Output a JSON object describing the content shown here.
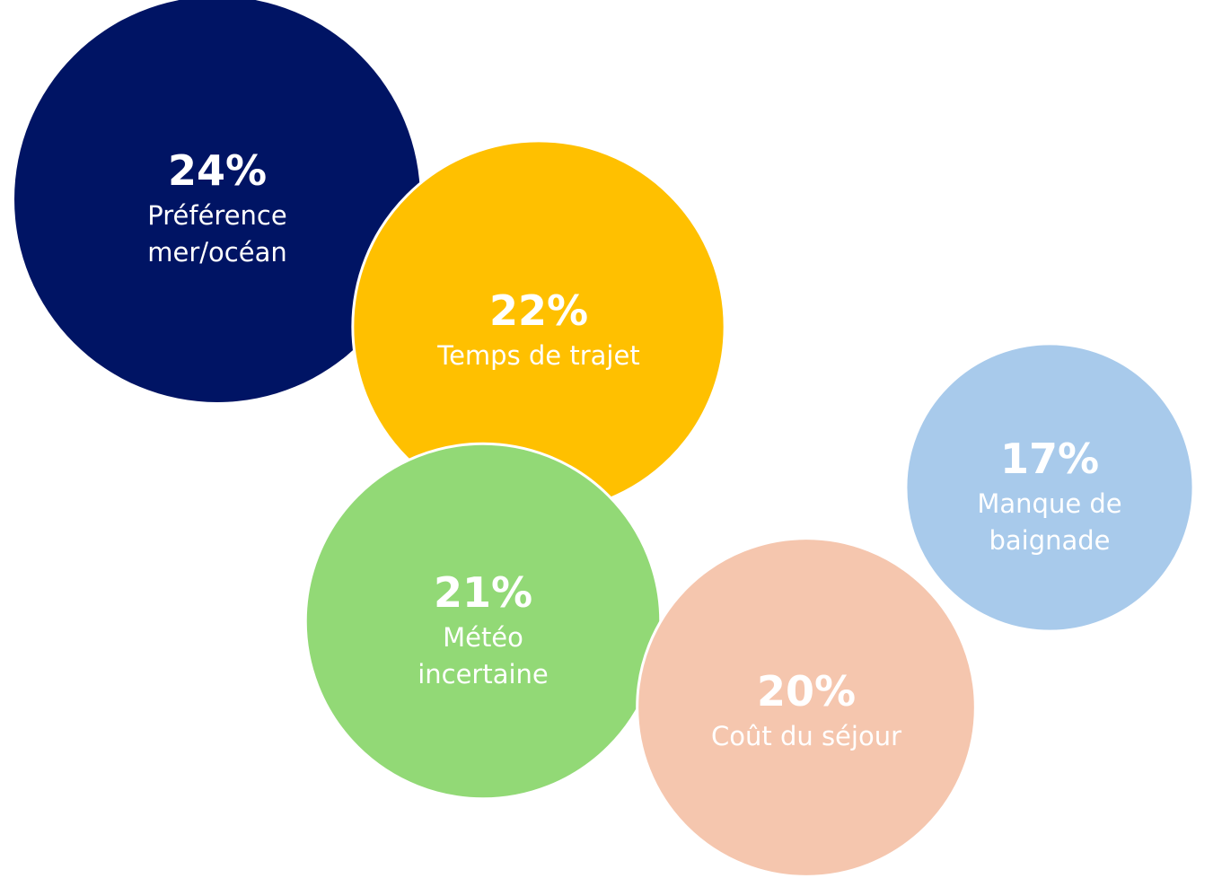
{
  "chart_data": {
    "type": "bubble",
    "title": "",
    "unit": "%",
    "items": [
      {
        "value": 24,
        "percent_label": "24%",
        "label_lines": [
          "Préférence",
          "mer/océan"
        ],
        "color": "#001464"
      },
      {
        "value": 22,
        "percent_label": "22%",
        "label_lines": [
          "Temps de trajet"
        ],
        "color": "#FFC000"
      },
      {
        "value": 21,
        "percent_label": "21%",
        "label_lines": [
          "Météo",
          "incertaine"
        ],
        "color": "#92D976"
      },
      {
        "value": 20,
        "percent_label": "20%",
        "label_lines": [
          "Coût du séjour"
        ],
        "color": "#F5C6AE"
      },
      {
        "value": 17,
        "percent_label": "17%",
        "label_lines": [
          "Manque de",
          "baignade"
        ],
        "color": "#A8CAEB"
      }
    ]
  }
}
